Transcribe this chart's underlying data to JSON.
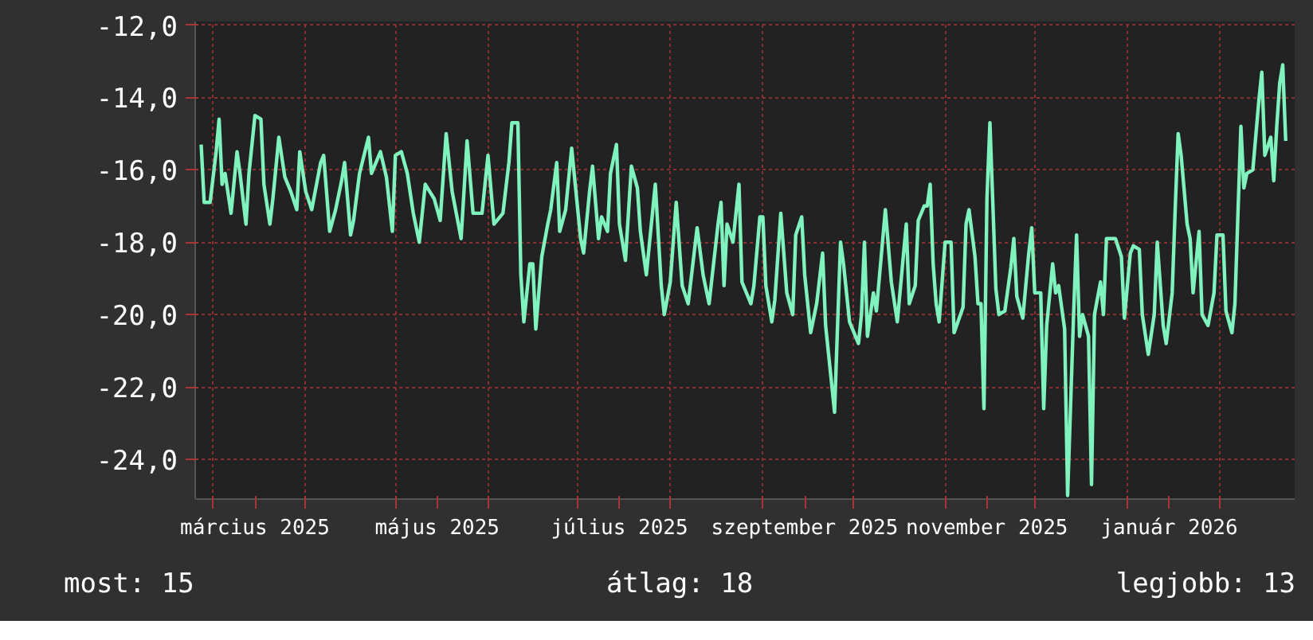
{
  "chart_data": {
    "type": "line",
    "xlim": [
      "2025-02-23",
      "2026-02-26"
    ],
    "xticks": [
      {
        "value": "2025-03-01",
        "label": null
      },
      {
        "value": "2025-04-01",
        "label": null
      },
      {
        "value": "2025-05-01",
        "label": null
      },
      {
        "value": "2025-06-01",
        "label": null
      },
      {
        "value": "2025-07-01",
        "label": null
      },
      {
        "value": "2025-08-01",
        "label": null
      },
      {
        "value": "2025-09-01",
        "label": null
      },
      {
        "value": "2025-10-01",
        "label": null
      },
      {
        "value": "2025-11-01",
        "label": null
      },
      {
        "value": "2025-12-01",
        "label": null
      },
      {
        "value": "2026-01-01",
        "label": null
      },
      {
        "value": "2026-02-01",
        "label": null
      },
      {
        "value": "2025-03-15",
        "label": "március 2025"
      },
      {
        "value": "2025-05-15",
        "label": "május 2025"
      },
      {
        "value": "2025-07-15",
        "label": "július 2025"
      },
      {
        "value": "2025-09-15",
        "label": "szeptember 2025"
      },
      {
        "value": "2025-11-15",
        "label": "november 2025"
      },
      {
        "value": "2026-01-15",
        "label": "január 2026"
      }
    ],
    "ylim": [
      -25.1,
      -11.9
    ],
    "yticks": [
      {
        "value": -12,
        "label": "-12,0"
      },
      {
        "value": -14,
        "label": "-14,0"
      },
      {
        "value": -16,
        "label": "-16,0"
      },
      {
        "value": -18,
        "label": "-18,0"
      },
      {
        "value": -20,
        "label": "-20,0"
      },
      {
        "value": -22,
        "label": "-22,0"
      },
      {
        "value": -24,
        "label": "-24,0"
      }
    ],
    "grid": true,
    "annotations": [
      "most: 15",
      "átlag: 18",
      "legjobb: 13"
    ],
    "series": [
      {
        "color": "#7ff2bd",
        "x": [
          "2025-02-25",
          "2025-02-26",
          "2025-02-28",
          "2025-03-02",
          "2025-03-03",
          "2025-03-04",
          "2025-03-05",
          "2025-03-07",
          "2025-03-09",
          "2025-03-10",
          "2025-03-12",
          "2025-03-13",
          "2025-03-15",
          "2025-03-17",
          "2025-03-18",
          "2025-03-20",
          "2025-03-21",
          "2025-03-23",
          "2025-03-25",
          "2025-03-27",
          "2025-03-29",
          "2025-03-30",
          "2025-04-01",
          "2025-04-03",
          "2025-04-06",
          "2025-04-07",
          "2025-04-09",
          "2025-04-11",
          "2025-04-13",
          "2025-04-14",
          "2025-04-16",
          "2025-04-17",
          "2025-04-19",
          "2025-04-22",
          "2025-04-23",
          "2025-04-26",
          "2025-04-28",
          "2025-04-30",
          "2025-05-01",
          "2025-05-03",
          "2025-05-05",
          "2025-05-07",
          "2025-05-09",
          "2025-05-11",
          "2025-05-14",
          "2025-05-16",
          "2025-05-18",
          "2025-05-20",
          "2025-05-23",
          "2025-05-25",
          "2025-05-27",
          "2025-05-30",
          "2025-06-01",
          "2025-06-03",
          "2025-06-06",
          "2025-06-08",
          "2025-06-09",
          "2025-06-11",
          "2025-06-12",
          "2025-06-13",
          "2025-06-15",
          "2025-06-16",
          "2025-06-17",
          "2025-06-19",
          "2025-06-21",
          "2025-06-22",
          "2025-06-24",
          "2025-06-25",
          "2025-06-27",
          "2025-06-29",
          "2025-07-02",
          "2025-07-03",
          "2025-07-05",
          "2025-07-06",
          "2025-07-08",
          "2025-07-09",
          "2025-07-11",
          "2025-07-12",
          "2025-07-14",
          "2025-07-15",
          "2025-07-17",
          "2025-07-19",
          "2025-07-21",
          "2025-07-22",
          "2025-07-24",
          "2025-07-27",
          "2025-07-29",
          "2025-07-30",
          "2025-08-01",
          "2025-08-03",
          "2025-08-05",
          "2025-08-07",
          "2025-08-10",
          "2025-08-12",
          "2025-08-14",
          "2025-08-17",
          "2025-08-18",
          "2025-08-19",
          "2025-08-20",
          "2025-08-22",
          "2025-08-24",
          "2025-08-25",
          "2025-08-28",
          "2025-08-29",
          "2025-08-31",
          "2025-09-01",
          "2025-09-02",
          "2025-09-04",
          "2025-09-05",
          "2025-09-07",
          "2025-09-09",
          "2025-09-11",
          "2025-09-12",
          "2025-09-14",
          "2025-09-15",
          "2025-09-17",
          "2025-09-19",
          "2025-09-21",
          "2025-09-22",
          "2025-09-24",
          "2025-09-25",
          "2025-09-26",
          "2025-09-27",
          "2025-09-28",
          "2025-09-30",
          "2025-10-03",
          "2025-10-04",
          "2025-10-05",
          "2025-10-06",
          "2025-10-08",
          "2025-10-09",
          "2025-10-12",
          "2025-10-14",
          "2025-10-16",
          "2025-10-19",
          "2025-10-20",
          "2025-10-22",
          "2025-10-23",
          "2025-10-25",
          "2025-10-26",
          "2025-10-27",
          "2025-10-28",
          "2025-10-29",
          "2025-10-30",
          "2025-11-01",
          "2025-11-03",
          "2025-11-04",
          "2025-11-07",
          "2025-11-08",
          "2025-11-09",
          "2025-11-11",
          "2025-11-12",
          "2025-11-13",
          "2025-11-14",
          "2025-11-15",
          "2025-11-16",
          "2025-11-18",
          "2025-11-19",
          "2025-11-21",
          "2025-11-23",
          "2025-11-24",
          "2025-11-25",
          "2025-11-27",
          "2025-11-29",
          "2025-11-30",
          "2025-12-01",
          "2025-12-03",
          "2025-12-04",
          "2025-12-05",
          "2025-12-07",
          "2025-12-08",
          "2025-12-09",
          "2025-12-11",
          "2025-12-12",
          "2025-12-14",
          "2025-12-15",
          "2025-12-16",
          "2025-12-17",
          "2025-12-19",
          "2025-12-20",
          "2025-12-21",
          "2025-12-23",
          "2025-12-24",
          "2025-12-25",
          "2025-12-28",
          "2025-12-30",
          "2025-12-31",
          "2026-01-02",
          "2026-01-03",
          "2026-01-05",
          "2026-01-06",
          "2026-01-08",
          "2026-01-10",
          "2026-01-11",
          "2026-01-13",
          "2026-01-14",
          "2026-01-16",
          "2026-01-17",
          "2026-01-18",
          "2026-01-19",
          "2026-01-21",
          "2026-01-22",
          "2026-01-23",
          "2026-01-25",
          "2026-01-26",
          "2026-01-28",
          "2026-01-30",
          "2026-01-31",
          "2026-02-02",
          "2026-02-03",
          "2026-02-05",
          "2026-02-06",
          "2026-02-08",
          "2026-02-09",
          "2026-02-10",
          "2026-02-12",
          "2026-02-14",
          "2026-02-15",
          "2026-02-16",
          "2026-02-18",
          "2026-02-19",
          "2026-02-20",
          "2026-02-21",
          "2026-02-22",
          "2026-02-23"
        ],
        "values": [
          -15.3,
          -16.9,
          -16.9,
          -15.5,
          -14.6,
          -16.4,
          -16.1,
          -17.2,
          -15.5,
          -16.1,
          -17.5,
          -16.1,
          -14.5,
          -14.6,
          -16.4,
          -17.5,
          -16.8,
          -15.1,
          -16.2,
          -16.6,
          -17.1,
          -15.5,
          -16.6,
          -17.1,
          -15.8,
          -15.6,
          -17.7,
          -17.1,
          -16.3,
          -15.8,
          -17.8,
          -17.4,
          -16.1,
          -15.1,
          -16.1,
          -15.5,
          -16.2,
          -17.7,
          -15.6,
          -15.5,
          -16.1,
          -17.2,
          -18.0,
          -16.4,
          -16.8,
          -17.4,
          -15.0,
          -16.6,
          -17.9,
          -15.2,
          -17.2,
          -17.2,
          -15.6,
          -17.5,
          -17.2,
          -15.8,
          -14.7,
          -14.7,
          -18.9,
          -20.2,
          -18.6,
          -18.6,
          -20.4,
          -18.4,
          -17.5,
          -17.1,
          -15.8,
          -17.7,
          -17.1,
          -15.4,
          -17.9,
          -18.3,
          -16.6,
          -15.9,
          -17.9,
          -17.3,
          -17.7,
          -16.1,
          -15.3,
          -17.5,
          -18.5,
          -15.9,
          -16.5,
          -17.7,
          -18.9,
          -16.4,
          -19.2,
          -20.0,
          -19.1,
          -16.9,
          -19.2,
          -19.7,
          -17.6,
          -18.9,
          -19.7,
          -17.5,
          -16.9,
          -19.2,
          -17.5,
          -18.0,
          -16.4,
          -19.1,
          -19.7,
          -19.2,
          -17.3,
          -17.3,
          -19.2,
          -20.2,
          -19.6,
          -17.2,
          -19.4,
          -20.0,
          -17.8,
          -17.3,
          -18.9,
          -20.5,
          -19.7,
          -18.3,
          -20.3,
          -21.9,
          -22.7,
          -20.3,
          -18.0,
          -18.6,
          -20.2,
          -20.8,
          -20.0,
          -18.0,
          -20.6,
          -19.4,
          -19.9,
          -17.1,
          -19.1,
          -20.2,
          -17.5,
          -19.7,
          -19.2,
          -17.4,
          -17.0,
          -17.0,
          -16.4,
          -18.6,
          -19.7,
          -20.2,
          -18.0,
          -18.0,
          -20.5,
          -19.8,
          -17.5,
          -17.1,
          -18.4,
          -19.7,
          -19.7,
          -22.6,
          -16.8,
          -14.7,
          -19.3,
          -20.0,
          -19.9,
          -18.7,
          -17.9,
          -19.5,
          -20.1,
          -18.3,
          -17.6,
          -19.4,
          -19.4,
          -22.6,
          -20.3,
          -18.6,
          -19.4,
          -19.2,
          -20.4,
          -25.0,
          -20.0,
          -17.8,
          -20.6,
          -20.0,
          -20.6,
          -24.7,
          -20.0,
          -19.1,
          -20.0,
          -17.9,
          -17.9,
          -18.4,
          -20.1,
          -18.3,
          -18.1,
          -18.2,
          -20.0,
          -21.1,
          -20.0,
          -18.0,
          -20.3,
          -20.8,
          -19.4,
          -17.1,
          -15.0,
          -15.6,
          -17.5,
          -17.9,
          -19.4,
          -17.7,
          -20.0,
          -20.3,
          -19.4,
          -17.8,
          -17.8,
          -19.9,
          -20.5,
          -19.7,
          -14.8,
          -16.5,
          -16.1,
          -16.0,
          -14.1,
          -13.3,
          -15.6,
          -15.1,
          -16.3,
          -14.8,
          -13.6,
          -13.1,
          -15.2
        ]
      }
    ]
  }
}
